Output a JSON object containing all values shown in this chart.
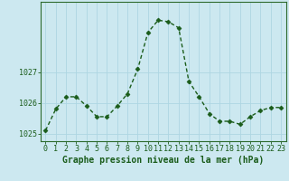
{
  "x": [
    0,
    1,
    2,
    3,
    4,
    5,
    6,
    7,
    8,
    9,
    10,
    11,
    12,
    13,
    14,
    15,
    16,
    17,
    18,
    19,
    20,
    21,
    22,
    23
  ],
  "y": [
    1025.1,
    1025.8,
    1026.2,
    1026.2,
    1025.9,
    1025.55,
    1025.55,
    1025.9,
    1026.3,
    1027.1,
    1028.3,
    1028.7,
    1028.65,
    1028.45,
    1026.7,
    1026.2,
    1025.65,
    1025.4,
    1025.4,
    1025.3,
    1025.55,
    1025.75,
    1025.85,
    1025.85
  ],
  "line_color": "#1a5c1a",
  "marker": "D",
  "marker_size": 2.5,
  "bg_color": "#cce8f0",
  "plot_bg_color": "#cce8f0",
  "grid_color": "#aed6e2",
  "ylabel_ticks": [
    1025,
    1026,
    1027
  ],
  "ylim": [
    1024.75,
    1029.3
  ],
  "xlim": [
    -0.5,
    23.5
  ],
  "xlabel": "Graphe pression niveau de la mer (hPa)",
  "xlabel_fontsize": 7,
  "tick_fontsize": 6,
  "border_color": "#2d6a2d",
  "line_width": 1.0
}
